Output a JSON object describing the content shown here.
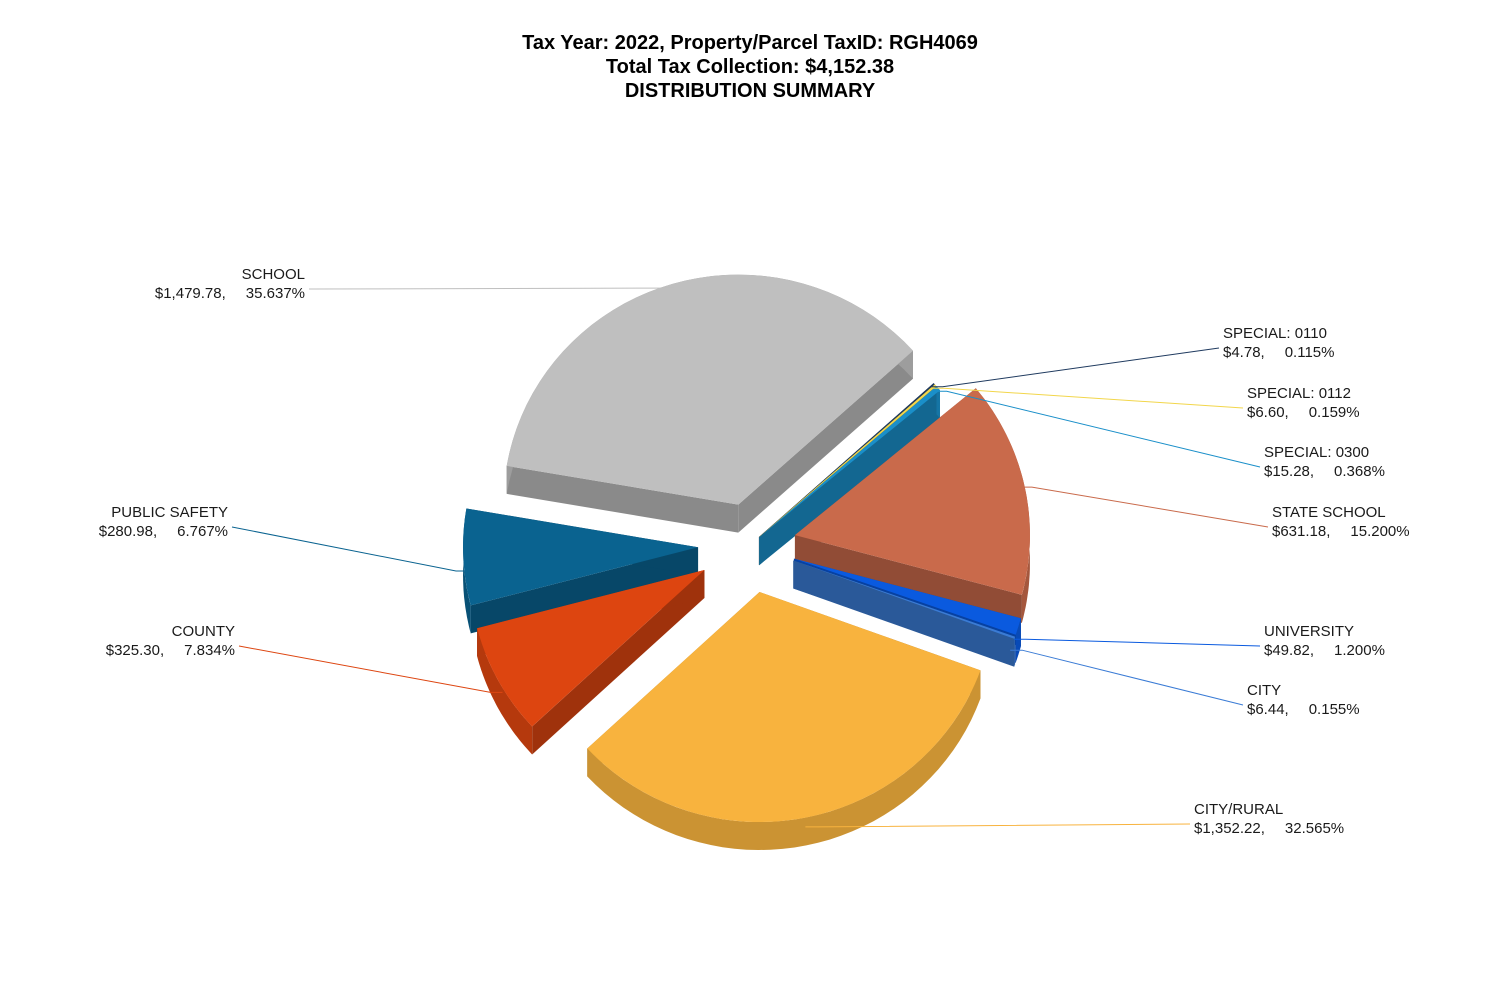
{
  "title_lines": [
    "Tax Year: 2022, Property/Parcel TaxID: RGH4069",
    "Total Tax Collection: $4,152.38",
    "DISTRIBUTION SUMMARY"
  ],
  "chart_data": {
    "type": "pie",
    "style": "3d-exploded",
    "total": "$4,152.38",
    "slices": [
      {
        "name": "SPECIAL: 0110",
        "amount": 4.78,
        "amount_label": "$4.78,",
        "percent": 0.115,
        "percent_label": "0.115%",
        "color": "#1f3a5f"
      },
      {
        "name": "SPECIAL: 0112",
        "amount": 6.6,
        "amount_label": "$6.60,",
        "percent": 0.159,
        "percent_label": "0.159%",
        "color": "#f2d64b"
      },
      {
        "name": "SPECIAL: 0300",
        "amount": 15.28,
        "amount_label": "$15.28,",
        "percent": 0.368,
        "percent_label": "0.368%",
        "color": "#1a8fc9"
      },
      {
        "name": "STATE SCHOOL",
        "amount": 631.18,
        "amount_label": "$631.18,",
        "percent": 15.2,
        "percent_label": "15.200%",
        "color": "#c96a4b"
      },
      {
        "name": "UNIVERSITY",
        "amount": 49.82,
        "amount_label": "$49.82,",
        "percent": 1.2,
        "percent_label": "1.200%",
        "color": "#0a5adf"
      },
      {
        "name": "CITY",
        "amount": 6.44,
        "amount_label": "$6.44,",
        "percent": 0.155,
        "percent_label": "0.155%",
        "color": "#3a7bd5"
      },
      {
        "name": "CITY/RURAL",
        "amount": 1352.22,
        "amount_label": "$1,352.22,",
        "percent": 32.565,
        "percent_label": "32.565%",
        "color": "#f8b33e"
      },
      {
        "name": "COUNTY",
        "amount": 325.3,
        "amount_label": "$325.30,",
        "percent": 7.834,
        "percent_label": "7.834%",
        "color": "#dd4510"
      },
      {
        "name": "PUBLIC SAFETY",
        "amount": 280.98,
        "amount_label": "$280.98,",
        "percent": 6.767,
        "percent_label": "6.767%",
        "color": "#0a6390"
      },
      {
        "name": "SCHOOL",
        "amount": 1479.78,
        "amount_label": "$1,479.78,",
        "percent": 35.637,
        "percent_label": "35.637%",
        "color": "#bfbfbf"
      }
    ]
  }
}
